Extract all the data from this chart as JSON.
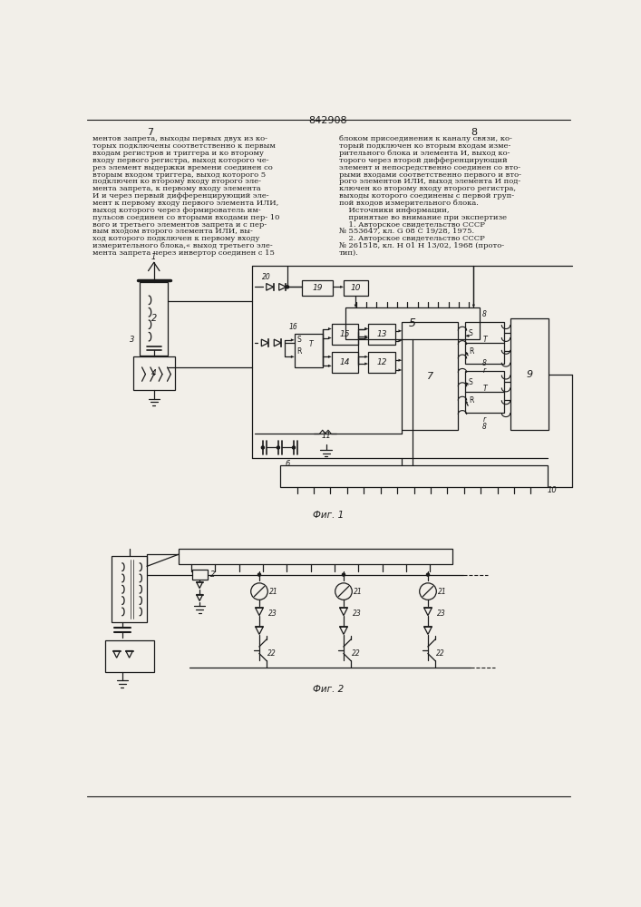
{
  "title": "842908",
  "page_left": "7",
  "page_right": "8",
  "bg_color": "#f2efe9",
  "text_color": "#1a1a1a",
  "fig1_caption": "Фиг. 1",
  "fig2_caption": "Фиг. 2",
  "left_col_lines": [
    "ментов запрета, выходы первых двух из ко-",
    "торых подключены соответственно к первым",
    "входам регистров и триггера и ко второму",
    "входу первого регистра, выход которого че-",
    "рез элемент выдержки времени соединен со",
    "вторым входом триггера, выход которого 5",
    "подключен ко второму входу второго эле-",
    "мента запрета, к первому входу элемента",
    "И и через первый дифференцирующий эле-",
    "мент к первому входу первого элемента ИЛИ,",
    "выход которого через формирователь им-",
    "пульсов соединен со вторыми входами пер- 10",
    "вого и третьего элементов запрета и с пер-",
    "вым входом второго элемента ИЛИ, вы-",
    "ход которого подключен к первому входу",
    "измерительного блока,« выход третьего эле-",
    "мента запрета через инвертор соединен с 15"
  ],
  "right_col_lines": [
    "блоком присоединения к каналу связи, ко-",
    "торый подключен ко вторым входам изме-",
    "рительного блока и элемента И, выход ко-",
    "торого через второй дифференцирующий",
    "элемент и непосредственно соединен со вто-",
    "рыми входами соответственно первого и вто-",
    "рого элементов ИЛИ, выход элемента И под-",
    "ключен ко второму входу второго регистра,",
    "выходы которого соединены с первой груп-",
    "пой входов измерительного блока.",
    "    Источники информации,",
    "    принятые во внимание при экспертизе",
    "    1. Авторское свидетельство СССР",
    "№ 553647, кл. G 08 C 19/28, 1975.",
    "    2. Авторское свидетельство СССР",
    "№ 261518, кл. Н 01 Н 13/02, 1968 (прото-",
    "тип)."
  ]
}
